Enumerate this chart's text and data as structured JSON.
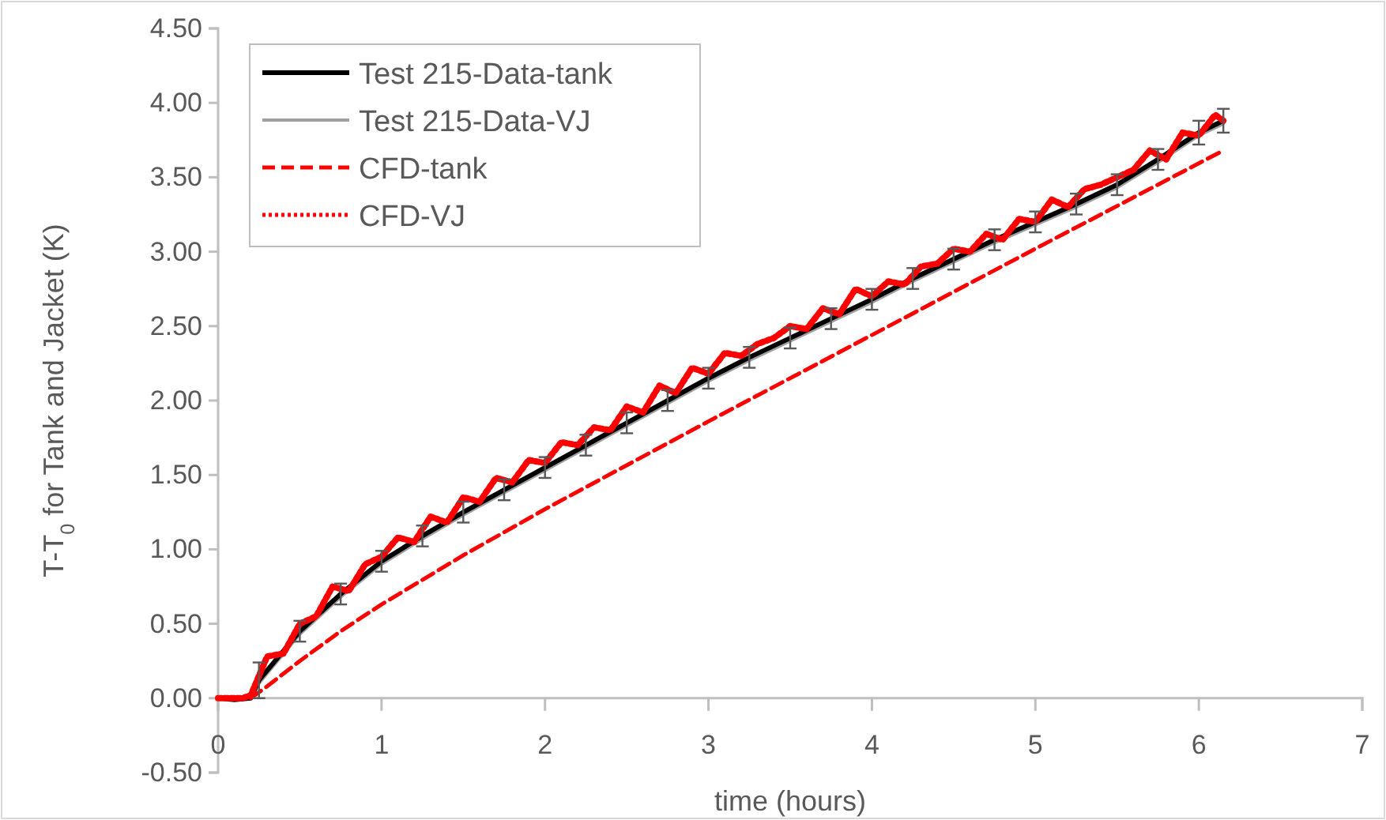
{
  "chart_data": {
    "type": "line",
    "xlabel": "time (hours)",
    "ylabel": "T-T$_{0}$ for Tank and Jacket (K)",
    "xlim": [
      0,
      7
    ],
    "xticks": [
      0,
      1,
      2,
      3,
      4,
      5,
      6,
      7
    ],
    "ylim": [
      -0.5,
      4.5
    ],
    "yticks": [
      {
        "value": -0.5,
        "label": "-0.50"
      },
      {
        "value": 0,
        "label": "0.00"
      },
      {
        "value": 0.5,
        "label": "0.50"
      },
      {
        "value": 1,
        "label": "1.00"
      },
      {
        "value": 1.5,
        "label": "1.50"
      },
      {
        "value": 2,
        "label": "2.00"
      },
      {
        "value": 2.5,
        "label": "2.50"
      },
      {
        "value": 3,
        "label": "3.00"
      },
      {
        "value": 3.5,
        "label": "3.50"
      },
      {
        "value": 4,
        "label": "4.00"
      },
      {
        "value": 4.5,
        "label": "4.50"
      }
    ],
    "grid": false,
    "legend": "top left",
    "marker": "none",
    "series": [
      {
        "name": "Test 215-Data-VJ",
        "color": "#a0a0a0",
        "line_style": "solid",
        "x": [
          0,
          0.1,
          0.2,
          0.25,
          0.5,
          0.75,
          1,
          1.25,
          1.5,
          1.75,
          2,
          2.25,
          2.5,
          2.75,
          3,
          3.25,
          3.5,
          3.75,
          4,
          4.25,
          4.5,
          4.75,
          5,
          5.25,
          5.5,
          5.75,
          6,
          6.15
        ],
        "values": [
          0,
          -0.01,
          0,
          0.1,
          0.43,
          0.68,
          0.9,
          1.07,
          1.23,
          1.38,
          1.53,
          1.68,
          1.83,
          1.98,
          2.13,
          2.27,
          2.4,
          2.53,
          2.66,
          2.8,
          2.93,
          3.06,
          3.18,
          3.3,
          3.43,
          3.6,
          3.78,
          3.86
        ]
      },
      {
        "name": "Test 215-Data-tank",
        "color": "#000000",
        "line_style": "solid",
        "x": [
          0,
          0.1,
          0.2,
          0.25,
          0.5,
          0.75,
          1,
          1.25,
          1.5,
          1.75,
          2,
          2.25,
          2.5,
          2.75,
          3,
          3.25,
          3.5,
          3.75,
          4,
          4.25,
          4.5,
          4.75,
          5,
          5.25,
          5.5,
          5.75,
          6,
          6.15
        ],
        "values": [
          0,
          -0.01,
          0,
          0.12,
          0.45,
          0.7,
          0.92,
          1.09,
          1.25,
          1.4,
          1.55,
          1.7,
          1.85,
          2.0,
          2.15,
          2.29,
          2.42,
          2.55,
          2.68,
          2.82,
          2.95,
          3.08,
          3.2,
          3.32,
          3.45,
          3.62,
          3.8,
          3.88
        ],
        "errors": [
          null,
          null,
          null,
          0.12,
          0.07,
          0.07,
          0.07,
          0.07,
          0.07,
          0.07,
          0.07,
          0.07,
          0.07,
          0.07,
          0.07,
          0.07,
          0.07,
          0.07,
          0.07,
          0.07,
          0.07,
          0.07,
          0.07,
          0.07,
          0.07,
          0.07,
          0.08,
          0.08
        ]
      },
      {
        "name": "CFD-tank",
        "color": "#ff0000",
        "line_style": "dashed",
        "x": [
          0.2,
          0.3,
          0.5,
          0.75,
          1,
          1.5,
          2,
          3,
          4,
          5,
          6.15
        ],
        "values": [
          0,
          0.08,
          0.25,
          0.45,
          0.63,
          0.96,
          1.27,
          1.86,
          2.44,
          3.02,
          3.68
        ]
      },
      {
        "name": "CFD-VJ",
        "color": "#ff0000",
        "line_style": "dotted",
        "x": [
          0,
          0.15,
          0.2,
          0.3,
          0.4,
          0.5,
          0.6,
          0.7,
          0.8,
          0.9,
          1.0,
          1.1,
          1.2,
          1.3,
          1.4,
          1.5,
          1.6,
          1.7,
          1.8,
          1.9,
          2.0,
          2.1,
          2.2,
          2.3,
          2.4,
          2.5,
          2.6,
          2.7,
          2.8,
          2.9,
          3.0,
          3.1,
          3.2,
          3.3,
          3.4,
          3.5,
          3.6,
          3.7,
          3.8,
          3.9,
          4.0,
          4.1,
          4.2,
          4.3,
          4.4,
          4.5,
          4.6,
          4.7,
          4.8,
          4.9,
          5.0,
          5.1,
          5.2,
          5.3,
          5.4,
          5.5,
          5.6,
          5.7,
          5.8,
          5.9,
          6.0,
          6.1,
          6.15
        ],
        "values": [
          0,
          0,
          0.02,
          0.28,
          0.3,
          0.5,
          0.55,
          0.75,
          0.72,
          0.9,
          0.95,
          1.08,
          1.05,
          1.22,
          1.18,
          1.35,
          1.32,
          1.48,
          1.45,
          1.6,
          1.58,
          1.72,
          1.7,
          1.82,
          1.8,
          1.96,
          1.92,
          2.1,
          2.05,
          2.22,
          2.18,
          2.32,
          2.3,
          2.38,
          2.42,
          2.5,
          2.48,
          2.62,
          2.58,
          2.75,
          2.7,
          2.8,
          2.78,
          2.9,
          2.92,
          3.02,
          3.0,
          3.12,
          3.08,
          3.22,
          3.2,
          3.35,
          3.3,
          3.42,
          3.45,
          3.5,
          3.55,
          3.68,
          3.62,
          3.8,
          3.78,
          3.92,
          3.88
        ]
      }
    ]
  }
}
